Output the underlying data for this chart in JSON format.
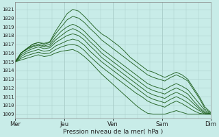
{
  "bg_color": "#c8ece8",
  "plot_bg_color": "#c8ece8",
  "grid_color_major": "#a8ccc8",
  "grid_color_minor": "#b8dcd8",
  "line_color": "#1a5c1a",
  "ylabel_ticks": [
    1009,
    1010,
    1011,
    1012,
    1013,
    1014,
    1015,
    1016,
    1017,
    1018,
    1019,
    1020,
    1021
  ],
  "xlabels": [
    "Mer",
    "Jeu",
    "Ven",
    "Sam",
    "Dim"
  ],
  "xlabel": "Pression niveau de la mer( hPa )",
  "ylim": [
    1008.5,
    1021.8
  ],
  "xlim": [
    0,
    96
  ],
  "day_ticks": [
    0,
    24,
    48,
    72,
    96
  ],
  "lines": [
    [
      1015.0,
      1016.0,
      1016.5,
      1017.0,
      1017.2,
      1017.1,
      1017.3,
      1018.5,
      1019.5,
      1020.5,
      1021.0,
      1020.8,
      1020.2,
      1019.5,
      1018.8,
      1018.2,
      1017.8,
      1017.3,
      1016.8,
      1016.2,
      1015.5,
      1015.0,
      1014.5,
      1014.0,
      1013.8,
      1013.5,
      1013.2,
      1013.5,
      1013.8,
      1013.5,
      1013.0,
      1012.0,
      1011.0,
      1009.8,
      1009.2
    ],
    [
      1015.0,
      1016.0,
      1016.5,
      1017.0,
      1017.2,
      1017.0,
      1017.2,
      1018.2,
      1019.0,
      1019.8,
      1020.2,
      1020.0,
      1019.5,
      1018.8,
      1018.2,
      1017.5,
      1017.0,
      1016.5,
      1016.0,
      1015.5,
      1015.0,
      1014.5,
      1014.0,
      1013.5,
      1013.2,
      1013.0,
      1012.8,
      1013.2,
      1013.5,
      1013.2,
      1012.8,
      1011.8,
      1010.8,
      1009.6,
      1009.1
    ],
    [
      1015.0,
      1016.0,
      1016.5,
      1016.8,
      1017.0,
      1016.8,
      1017.0,
      1017.8,
      1018.5,
      1019.0,
      1019.3,
      1019.0,
      1018.5,
      1017.8,
      1017.2,
      1016.5,
      1016.0,
      1015.5,
      1015.0,
      1014.5,
      1014.0,
      1013.5,
      1013.0,
      1012.5,
      1012.2,
      1012.0,
      1011.8,
      1012.2,
      1012.5,
      1012.2,
      1011.8,
      1011.0,
      1010.2,
      1009.4,
      1009.0
    ],
    [
      1015.0,
      1016.0,
      1016.4,
      1016.7,
      1016.9,
      1016.7,
      1016.8,
      1017.5,
      1018.0,
      1018.5,
      1018.8,
      1018.5,
      1018.0,
      1017.3,
      1016.7,
      1016.0,
      1015.5,
      1015.0,
      1014.5,
      1014.0,
      1013.5,
      1013.0,
      1012.5,
      1012.0,
      1011.7,
      1011.5,
      1011.3,
      1011.7,
      1012.0,
      1011.7,
      1011.3,
      1010.5,
      1009.8,
      1009.2,
      1009.0
    ],
    [
      1015.0,
      1015.8,
      1016.2,
      1016.5,
      1016.7,
      1016.5,
      1016.6,
      1017.2,
      1017.6,
      1018.0,
      1018.2,
      1018.0,
      1017.5,
      1016.8,
      1016.2,
      1015.5,
      1015.0,
      1014.5,
      1014.0,
      1013.5,
      1013.0,
      1012.5,
      1012.0,
      1011.5,
      1011.2,
      1011.0,
      1010.8,
      1011.2,
      1011.5,
      1011.2,
      1010.8,
      1010.2,
      1009.6,
      1009.1,
      1009.0
    ],
    [
      1015.0,
      1015.6,
      1016.0,
      1016.2,
      1016.4,
      1016.2,
      1016.3,
      1016.8,
      1017.1,
      1017.4,
      1017.6,
      1017.4,
      1016.9,
      1016.2,
      1015.6,
      1015.0,
      1014.5,
      1014.0,
      1013.5,
      1013.0,
      1012.5,
      1012.0,
      1011.5,
      1011.0,
      1010.7,
      1010.5,
      1010.3,
      1010.7,
      1011.0,
      1010.7,
      1010.3,
      1009.8,
      1009.4,
      1009.0,
      1009.0
    ],
    [
      1015.0,
      1015.4,
      1015.7,
      1015.9,
      1016.1,
      1015.9,
      1016.0,
      1016.4,
      1016.7,
      1016.9,
      1017.0,
      1016.8,
      1016.3,
      1015.6,
      1015.0,
      1014.4,
      1013.9,
      1013.4,
      1012.9,
      1012.4,
      1011.9,
      1011.4,
      1011.0,
      1010.5,
      1010.2,
      1010.0,
      1009.8,
      1010.2,
      1010.5,
      1010.2,
      1009.8,
      1009.4,
      1009.1,
      1009.0,
      1009.0
    ],
    [
      1015.0,
      1015.2,
      1015.4,
      1015.6,
      1015.8,
      1015.6,
      1015.7,
      1016.0,
      1016.2,
      1016.3,
      1016.4,
      1016.1,
      1015.6,
      1015.0,
      1014.3,
      1013.6,
      1013.0,
      1012.4,
      1011.8,
      1011.2,
      1010.6,
      1010.0,
      1009.5,
      1009.1,
      1009.0,
      1009.0,
      1009.0,
      1009.2,
      1009.4,
      1009.2,
      1009.0,
      1009.0,
      1009.0,
      1009.0,
      1009.0
    ]
  ]
}
